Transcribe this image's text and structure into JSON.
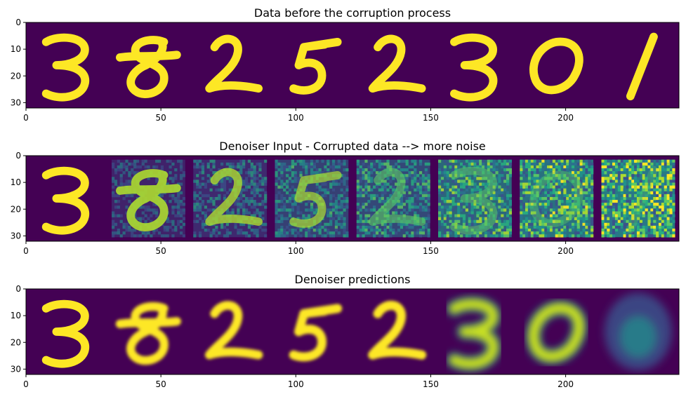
{
  "chart_data": [
    {
      "type": "heatmap",
      "title": "Data before the corruption process",
      "xlim": [
        0,
        242
      ],
      "ylim": [
        32,
        0
      ],
      "xticks": [
        0,
        50,
        100,
        150,
        200
      ],
      "yticks": [
        0,
        10,
        20,
        30
      ],
      "digits": [
        "3",
        "8",
        "2",
        "5",
        "2",
        "3",
        "0",
        "1"
      ],
      "noise_levels": [
        0,
        0,
        0,
        0,
        0,
        0,
        0,
        0
      ],
      "blur_levels": [
        0,
        0,
        0,
        0,
        0,
        0,
        0,
        0
      ]
    },
    {
      "type": "heatmap",
      "title": "Denoiser Input - Corrupted data --> more noise",
      "xlim": [
        0,
        242
      ],
      "ylim": [
        32,
        0
      ],
      "xticks": [
        0,
        50,
        100,
        150,
        200
      ],
      "yticks": [
        0,
        10,
        20,
        30
      ],
      "digits": [
        "3",
        "8",
        "2",
        "5",
        "2",
        "3",
        "0",
        "1"
      ],
      "noise_levels": [
        0,
        0.14,
        0.29,
        0.43,
        0.57,
        0.71,
        0.86,
        1.0
      ],
      "blur_levels": [
        0,
        0,
        0,
        0,
        0,
        0,
        0,
        0
      ]
    },
    {
      "type": "heatmap",
      "title": "Denoiser predictions",
      "xlim": [
        0,
        242
      ],
      "ylim": [
        32,
        0
      ],
      "xticks": [
        0,
        50,
        100,
        150,
        200
      ],
      "yticks": [
        0,
        10,
        20,
        30
      ],
      "digits": [
        "3",
        "8",
        "2",
        "5",
        "2",
        "3",
        "0",
        "1"
      ],
      "noise_levels": [
        0,
        0,
        0,
        0,
        0,
        0,
        0,
        0
      ],
      "blur_levels": [
        0,
        0.1,
        0.15,
        0.25,
        0.3,
        0.5,
        0.6,
        1.0
      ]
    }
  ],
  "colors": {
    "background": "#440154",
    "ink": "#fde725",
    "mid": "#21918c"
  }
}
